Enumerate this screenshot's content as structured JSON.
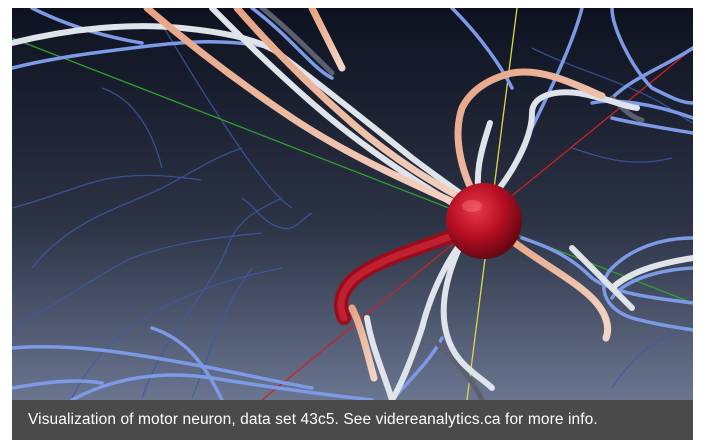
{
  "scene": {
    "subject": "motor neuron 3D rendering",
    "colors": {
      "background_top": "#0e1220",
      "background_bottom": "#6a7590",
      "soma": "#b80f23",
      "blue_branch": "#7c9ae6",
      "pale_branch": "#dfe3ea",
      "peach_branch": "#e8a383",
      "axis_x": "#cc2222",
      "axis_y": "#d8d84a",
      "axis_z": "#2ea02e"
    }
  },
  "caption": {
    "text": "Visualization of motor neuron, data set 43c5. See videreanalytics.ca for more info."
  }
}
